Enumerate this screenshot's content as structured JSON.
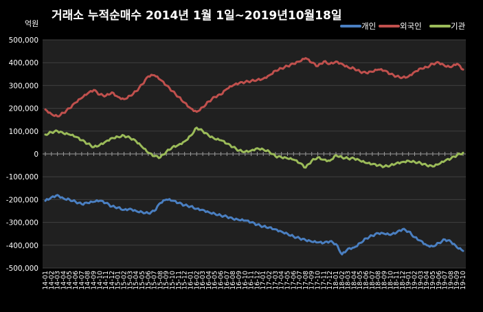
{
  "chart_data": {
    "type": "line",
    "title": "거래소  누적순매수 2014년 1월 1일~2019년10월18일",
    "unit_label": "억원",
    "ylim": [
      -500000,
      500000
    ],
    "yticks": [
      {
        "value": 500000,
        "label": "500,000"
      },
      {
        "value": 400000,
        "label": "400,000"
      },
      {
        "value": 300000,
        "label": "300,000"
      },
      {
        "value": 200000,
        "label": "200,000"
      },
      {
        "value": 100000,
        "label": "100,000"
      },
      {
        "value": 0,
        "label": "0"
      },
      {
        "value": -100000,
        "label": "-100,000"
      },
      {
        "value": -200000,
        "label": "-200,000"
      },
      {
        "value": -300000,
        "label": "-300,000"
      },
      {
        "value": -400000,
        "label": "-400,000"
      },
      {
        "value": -500000,
        "label": "-500,000"
      }
    ],
    "legend_position": "top-right",
    "grid": "horizontal",
    "x_tick_labels": [
      "14-01",
      "14-02",
      "14-03",
      "14-04",
      "14-05",
      "14-06",
      "14-07",
      "14-08",
      "14-09",
      "14-10",
      "14-11",
      "14-12",
      "15-01",
      "15-02",
      "15-03",
      "15-04",
      "15-05",
      "15-06",
      "15-07",
      "15-08",
      "15-09",
      "15-10",
      "15-11",
      "15-12",
      "16-01",
      "16-02",
      "16-03",
      "16-04",
      "16-05",
      "16-06",
      "16-07",
      "16-08",
      "16-09",
      "16-10",
      "16-11",
      "16-12",
      "17-01",
      "17-02",
      "17-03",
      "17-04",
      "17-05",
      "17-06",
      "17-07",
      "17-08",
      "17-09",
      "17-10",
      "17-11",
      "17-12",
      "18-01",
      "18-02",
      "18-03",
      "18-04",
      "18-05",
      "18-06",
      "18-07",
      "18-08",
      "18-09",
      "18-10",
      "18-11",
      "18-12",
      "19-01",
      "19-02",
      "19-03",
      "19-04",
      "19-05",
      "19-06",
      "19-07",
      "19-08",
      "19-09",
      "19-10"
    ],
    "series": [
      {
        "name": "개인",
        "color": "#4a7fc1",
        "values": [
          -205000,
          -190000,
          -180000,
          -195000,
          -200000,
          -210000,
          -220000,
          -215000,
          -210000,
          -205000,
          -215000,
          -230000,
          -235000,
          -245000,
          -240000,
          -250000,
          -255000,
          -260000,
          -250000,
          -215000,
          -200000,
          -205000,
          -215000,
          -225000,
          -230000,
          -240000,
          -245000,
          -255000,
          -262000,
          -270000,
          -275000,
          -285000,
          -290000,
          -292000,
          -300000,
          -310000,
          -318000,
          -322000,
          -330000,
          -340000,
          -350000,
          -362000,
          -370000,
          -378000,
          -385000,
          -388000,
          -390000,
          -383000,
          -395000,
          -440000,
          -415000,
          -410000,
          -390000,
          -370000,
          -358000,
          -348000,
          -350000,
          -355000,
          -345000,
          -330000,
          -340000,
          -365000,
          -380000,
          -400000,
          -405000,
          -390000,
          -375000,
          -385000,
          -410000,
          -425000
        ]
      },
      {
        "name": "외국인",
        "color": "#c0504d",
        "values": [
          195000,
          175000,
          165000,
          180000,
          200000,
          225000,
          245000,
          265000,
          280000,
          260000,
          255000,
          270000,
          250000,
          240000,
          255000,
          275000,
          305000,
          340000,
          345000,
          325000,
          300000,
          275000,
          250000,
          225000,
          200000,
          185000,
          205000,
          230000,
          250000,
          260000,
          285000,
          300000,
          310000,
          315000,
          320000,
          325000,
          330000,
          345000,
          365000,
          375000,
          385000,
          395000,
          405000,
          420000,
          400000,
          385000,
          405000,
          395000,
          405000,
          395000,
          380000,
          375000,
          360000,
          355000,
          360000,
          370000,
          365000,
          350000,
          340000,
          335000,
          340000,
          360000,
          375000,
          380000,
          395000,
          400000,
          385000,
          380000,
          395000,
          370000
        ]
      },
      {
        "name": "기관",
        "color": "#9bbb59",
        "values": [
          85000,
          95000,
          100000,
          90000,
          85000,
          75000,
          60000,
          45000,
          30000,
          40000,
          55000,
          70000,
          75000,
          80000,
          70000,
          55000,
          30000,
          5000,
          -10000,
          -15000,
          10000,
          30000,
          40000,
          55000,
          80000,
          115000,
          100000,
          80000,
          65000,
          60000,
          45000,
          30000,
          15000,
          10000,
          15000,
          25000,
          20000,
          10000,
          -10000,
          -15000,
          -20000,
          -25000,
          -40000,
          -60000,
          -30000,
          -15000,
          -25000,
          -30000,
          -5000,
          -15000,
          -20000,
          -20000,
          -30000,
          -40000,
          -45000,
          -50000,
          -55000,
          -50000,
          -40000,
          -35000,
          -30000,
          -35000,
          -40000,
          -50000,
          -55000,
          -45000,
          -30000,
          -20000,
          -5000,
          5000
        ]
      }
    ]
  }
}
